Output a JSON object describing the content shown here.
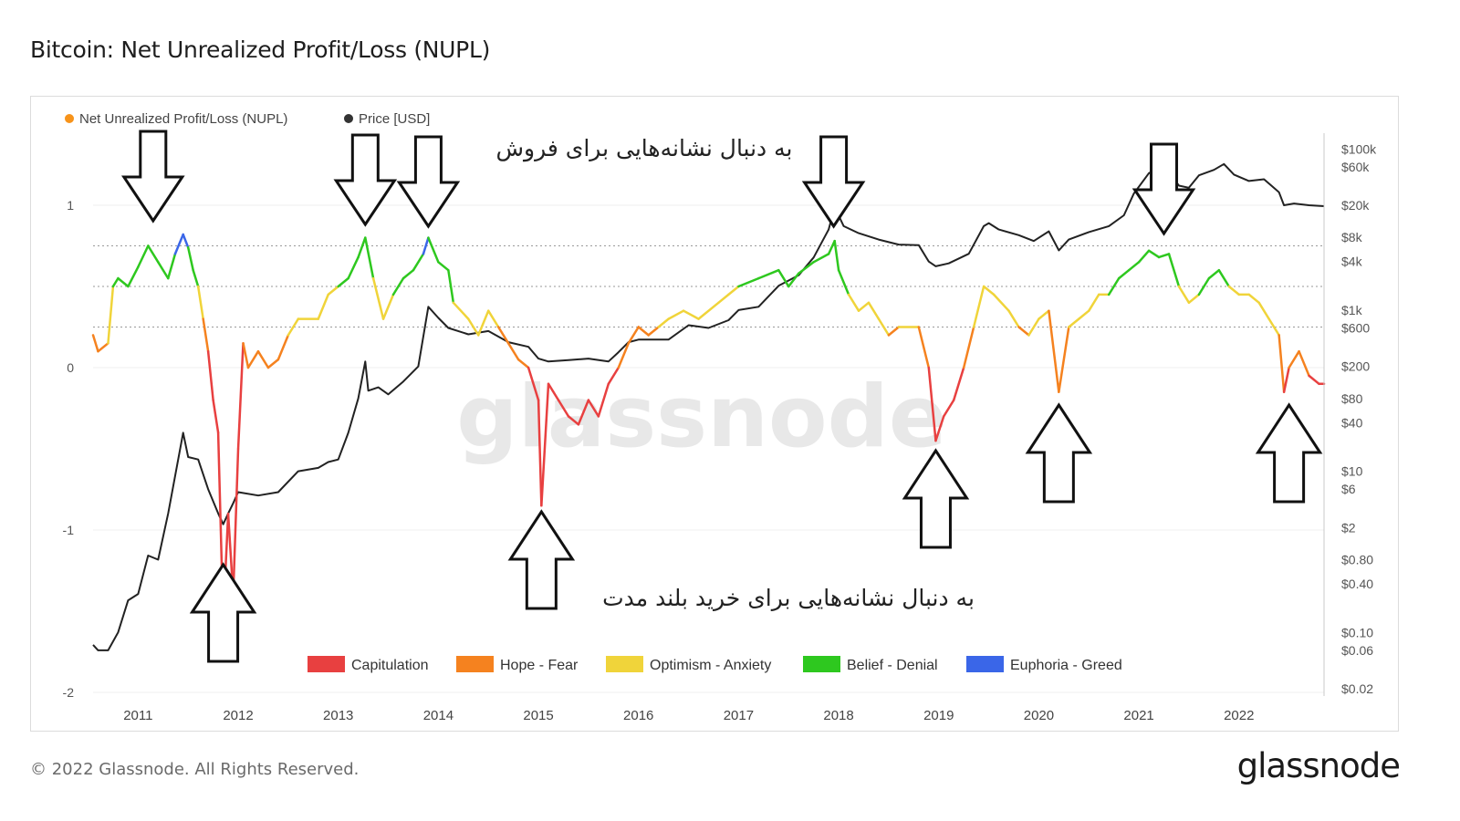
{
  "title": "Bitcoin: Net Unrealized Profit/Loss (NUPL)",
  "footer": {
    "copyright": "© 2022 Glassnode. All Rights Reserved.",
    "brand": "glassnode"
  },
  "watermark": "glassnode",
  "annotations": {
    "sell_text": "به دنبال نشانه‌هایی برای فروش",
    "buy_text": "به دنبال نشانه‌هایی برای خرید بلند مدت",
    "sell_arrow_dates": [
      2011.15,
      2013.27,
      2013.9,
      2017.95,
      2021.25
    ],
    "buy_arrow_dates": [
      2011.85,
      2015.03,
      2018.97,
      2020.2,
      2022.5
    ]
  },
  "colors": {
    "capitulation": "#e84040",
    "hope_fear": "#f5821f",
    "optimism_anxiety": "#f0d43a",
    "belief_denial": "#2ec81f",
    "euphoria_greed": "#3a66e8",
    "price": "#222222",
    "nupl_legend_dot": "#f7931a"
  },
  "chart_data": {
    "type": "line",
    "title": "Bitcoin: Net Unrealized Profit/Loss (NUPL)",
    "top_legend": [
      {
        "name": "Net Unrealized Profit/Loss (NUPL)",
        "color": "#f7931a"
      },
      {
        "name": "Price [USD]",
        "color": "#333333"
      }
    ],
    "zone_legend": [
      {
        "name": "Capitulation",
        "color": "#e84040"
      },
      {
        "name": "Hope - Fear",
        "color": "#f5821f"
      },
      {
        "name": "Optimism - Anxiety",
        "color": "#f0d43a"
      },
      {
        "name": "Belief - Denial",
        "color": "#2ec81f"
      },
      {
        "name": "Euphoria - Greed",
        "color": "#3a66e8"
      }
    ],
    "x_ticks": [
      "2011",
      "2012",
      "2013",
      "2014",
      "2015",
      "2016",
      "2017",
      "2018",
      "2019",
      "2020",
      "2021",
      "2022"
    ],
    "x_range": [
      2010.55,
      2022.85
    ],
    "y_left": {
      "ticks": [
        "1",
        "0",
        "-1",
        "-2"
      ],
      "tick_values": [
        1,
        0,
        -1,
        -2
      ],
      "range": [
        -2,
        1.4
      ]
    },
    "y_right": {
      "scale": "log",
      "ticks": [
        "$100k",
        "$60k",
        "$20k",
        "$8k",
        "$4k",
        "$1k",
        "$600",
        "$200",
        "$80",
        "$40",
        "$10",
        "$6",
        "$2",
        "$0.80",
        "$0.40",
        "$0.10",
        "$0.06",
        "$0.02"
      ],
      "tick_values": [
        100000,
        60000,
        20000,
        8000,
        4000,
        1000,
        600,
        200,
        80,
        40,
        10,
        6,
        2,
        0.8,
        0.4,
        0.1,
        0.06,
        0.02
      ]
    },
    "zone_thresholds": [
      0,
      0.25,
      0.5,
      0.75
    ],
    "nupl_series": {
      "name": "Net Unrealized Profit/Loss (NUPL)",
      "points": [
        [
          2010.55,
          0.2
        ],
        [
          2010.6,
          0.1
        ],
        [
          2010.7,
          0.15
        ],
        [
          2010.75,
          0.5
        ],
        [
          2010.8,
          0.55
        ],
        [
          2010.9,
          0.5
        ],
        [
          2011.0,
          0.62
        ],
        [
          2011.1,
          0.75
        ],
        [
          2011.2,
          0.65
        ],
        [
          2011.3,
          0.55
        ],
        [
          2011.37,
          0.7
        ],
        [
          2011.45,
          0.82
        ],
        [
          2011.5,
          0.74
        ],
        [
          2011.55,
          0.6
        ],
        [
          2011.6,
          0.5
        ],
        [
          2011.65,
          0.3
        ],
        [
          2011.7,
          0.1
        ],
        [
          2011.75,
          -0.2
        ],
        [
          2011.8,
          -0.4
        ],
        [
          2011.85,
          -1.55
        ],
        [
          2011.9,
          -0.9
        ],
        [
          2011.95,
          -1.4
        ],
        [
          2012.0,
          -0.5
        ],
        [
          2012.05,
          0.15
        ],
        [
          2012.1,
          0.0
        ],
        [
          2012.2,
          0.1
        ],
        [
          2012.3,
          0.0
        ],
        [
          2012.4,
          0.05
        ],
        [
          2012.5,
          0.2
        ],
        [
          2012.6,
          0.3
        ],
        [
          2012.8,
          0.3
        ],
        [
          2012.9,
          0.45
        ],
        [
          2013.0,
          0.5
        ],
        [
          2013.1,
          0.55
        ],
        [
          2013.2,
          0.68
        ],
        [
          2013.27,
          0.8
        ],
        [
          2013.35,
          0.55
        ],
        [
          2013.45,
          0.3
        ],
        [
          2013.55,
          0.45
        ],
        [
          2013.65,
          0.55
        ],
        [
          2013.75,
          0.6
        ],
        [
          2013.85,
          0.7
        ],
        [
          2013.9,
          0.8
        ],
        [
          2014.0,
          0.65
        ],
        [
          2014.1,
          0.6
        ],
        [
          2014.15,
          0.4
        ],
        [
          2014.3,
          0.3
        ],
        [
          2014.4,
          0.2
        ],
        [
          2014.5,
          0.35
        ],
        [
          2014.6,
          0.25
        ],
        [
          2014.7,
          0.15
        ],
        [
          2014.8,
          0.05
        ],
        [
          2014.9,
          0.0
        ],
        [
          2015.0,
          -0.2
        ],
        [
          2015.03,
          -0.85
        ],
        [
          2015.1,
          -0.1
        ],
        [
          2015.2,
          -0.2
        ],
        [
          2015.3,
          -0.3
        ],
        [
          2015.4,
          -0.35
        ],
        [
          2015.5,
          -0.2
        ],
        [
          2015.6,
          -0.3
        ],
        [
          2015.7,
          -0.1
        ],
        [
          2015.8,
          0.0
        ],
        [
          2015.9,
          0.15
        ],
        [
          2016.0,
          0.25
        ],
        [
          2016.1,
          0.2
        ],
        [
          2016.2,
          0.25
        ],
        [
          2016.3,
          0.3
        ],
        [
          2016.45,
          0.35
        ],
        [
          2016.6,
          0.3
        ],
        [
          2016.8,
          0.4
        ],
        [
          2016.9,
          0.45
        ],
        [
          2017.0,
          0.5
        ],
        [
          2017.2,
          0.55
        ],
        [
          2017.4,
          0.6
        ],
        [
          2017.5,
          0.5
        ],
        [
          2017.6,
          0.58
        ],
        [
          2017.75,
          0.65
        ],
        [
          2017.9,
          0.7
        ],
        [
          2017.96,
          0.78
        ],
        [
          2018.0,
          0.6
        ],
        [
          2018.1,
          0.45
        ],
        [
          2018.2,
          0.35
        ],
        [
          2018.3,
          0.4
        ],
        [
          2018.4,
          0.3
        ],
        [
          2018.5,
          0.2
        ],
        [
          2018.6,
          0.25
        ],
        [
          2018.8,
          0.25
        ],
        [
          2018.9,
          0.0
        ],
        [
          2018.97,
          -0.45
        ],
        [
          2019.05,
          -0.3
        ],
        [
          2019.15,
          -0.2
        ],
        [
          2019.25,
          0.0
        ],
        [
          2019.35,
          0.25
        ],
        [
          2019.45,
          0.5
        ],
        [
          2019.55,
          0.45
        ],
        [
          2019.7,
          0.35
        ],
        [
          2019.8,
          0.25
        ],
        [
          2019.9,
          0.2
        ],
        [
          2020.0,
          0.3
        ],
        [
          2020.1,
          0.35
        ],
        [
          2020.2,
          -0.15
        ],
        [
          2020.3,
          0.25
        ],
        [
          2020.4,
          0.3
        ],
        [
          2020.5,
          0.35
        ],
        [
          2020.6,
          0.45
        ],
        [
          2020.7,
          0.45
        ],
        [
          2020.8,
          0.55
        ],
        [
          2020.9,
          0.6
        ],
        [
          2021.0,
          0.65
        ],
        [
          2021.1,
          0.72
        ],
        [
          2021.2,
          0.68
        ],
        [
          2021.3,
          0.7
        ],
        [
          2021.4,
          0.5
        ],
        [
          2021.5,
          0.4
        ],
        [
          2021.6,
          0.45
        ],
        [
          2021.7,
          0.55
        ],
        [
          2021.8,
          0.6
        ],
        [
          2021.9,
          0.5
        ],
        [
          2022.0,
          0.45
        ],
        [
          2022.1,
          0.45
        ],
        [
          2022.2,
          0.4
        ],
        [
          2022.3,
          0.3
        ],
        [
          2022.4,
          0.2
        ],
        [
          2022.45,
          -0.15
        ],
        [
          2022.5,
          0.0
        ],
        [
          2022.6,
          0.1
        ],
        [
          2022.7,
          -0.05
        ],
        [
          2022.8,
          -0.1
        ],
        [
          2022.85,
          -0.1
        ]
      ]
    },
    "price_series": {
      "name": "Price [USD]",
      "points": [
        [
          2010.55,
          0.07
        ],
        [
          2010.6,
          0.06
        ],
        [
          2010.7,
          0.06
        ],
        [
          2010.8,
          0.1
        ],
        [
          2010.9,
          0.25
        ],
        [
          2011.0,
          0.3
        ],
        [
          2011.1,
          0.9
        ],
        [
          2011.2,
          0.8
        ],
        [
          2011.3,
          3
        ],
        [
          2011.45,
          30
        ],
        [
          2011.5,
          15
        ],
        [
          2011.6,
          14
        ],
        [
          2011.7,
          6
        ],
        [
          2011.8,
          3
        ],
        [
          2011.85,
          2.2
        ],
        [
          2011.9,
          3
        ],
        [
          2011.95,
          4
        ],
        [
          2012.0,
          5.5
        ],
        [
          2012.2,
          5
        ],
        [
          2012.4,
          5.5
        ],
        [
          2012.6,
          10
        ],
        [
          2012.8,
          11
        ],
        [
          2012.9,
          13
        ],
        [
          2013.0,
          14
        ],
        [
          2013.1,
          30
        ],
        [
          2013.2,
          80
        ],
        [
          2013.27,
          230
        ],
        [
          2013.3,
          100
        ],
        [
          2013.4,
          110
        ],
        [
          2013.5,
          90
        ],
        [
          2013.65,
          130
        ],
        [
          2013.8,
          200
        ],
        [
          2013.9,
          1100
        ],
        [
          2014.0,
          800
        ],
        [
          2014.1,
          600
        ],
        [
          2014.3,
          500
        ],
        [
          2014.5,
          550
        ],
        [
          2014.7,
          400
        ],
        [
          2014.9,
          350
        ],
        [
          2015.0,
          250
        ],
        [
          2015.1,
          230
        ],
        [
          2015.3,
          240
        ],
        [
          2015.5,
          250
        ],
        [
          2015.7,
          230
        ],
        [
          2015.8,
          300
        ],
        [
          2015.9,
          400
        ],
        [
          2016.0,
          430
        ],
        [
          2016.3,
          430
        ],
        [
          2016.5,
          650
        ],
        [
          2016.7,
          600
        ],
        [
          2016.9,
          750
        ],
        [
          2017.0,
          1000
        ],
        [
          2017.2,
          1100
        ],
        [
          2017.4,
          2000
        ],
        [
          2017.6,
          2700
        ],
        [
          2017.75,
          4500
        ],
        [
          2017.9,
          10000
        ],
        [
          2017.96,
          19000
        ],
        [
          2018.05,
          11000
        ],
        [
          2018.2,
          9000
        ],
        [
          2018.4,
          7500
        ],
        [
          2018.6,
          6500
        ],
        [
          2018.8,
          6400
        ],
        [
          2018.9,
          4000
        ],
        [
          2018.97,
          3500
        ],
        [
          2019.1,
          3800
        ],
        [
          2019.3,
          5000
        ],
        [
          2019.45,
          11000
        ],
        [
          2019.5,
          12000
        ],
        [
          2019.6,
          10000
        ],
        [
          2019.8,
          8500
        ],
        [
          2019.95,
          7200
        ],
        [
          2020.1,
          9500
        ],
        [
          2020.2,
          5500
        ],
        [
          2020.3,
          7500
        ],
        [
          2020.5,
          9300
        ],
        [
          2020.7,
          11000
        ],
        [
          2020.85,
          15000
        ],
        [
          2020.95,
          28000
        ],
        [
          2021.1,
          50000
        ],
        [
          2021.25,
          62000
        ],
        [
          2021.4,
          35000
        ],
        [
          2021.5,
          33000
        ],
        [
          2021.6,
          47000
        ],
        [
          2021.75,
          55000
        ],
        [
          2021.85,
          65000
        ],
        [
          2021.95,
          48000
        ],
        [
          2022.1,
          40000
        ],
        [
          2022.25,
          42000
        ],
        [
          2022.4,
          29000
        ],
        [
          2022.45,
          20000
        ],
        [
          2022.55,
          21000
        ],
        [
          2022.7,
          20000
        ],
        [
          2022.85,
          19500
        ]
      ]
    }
  }
}
